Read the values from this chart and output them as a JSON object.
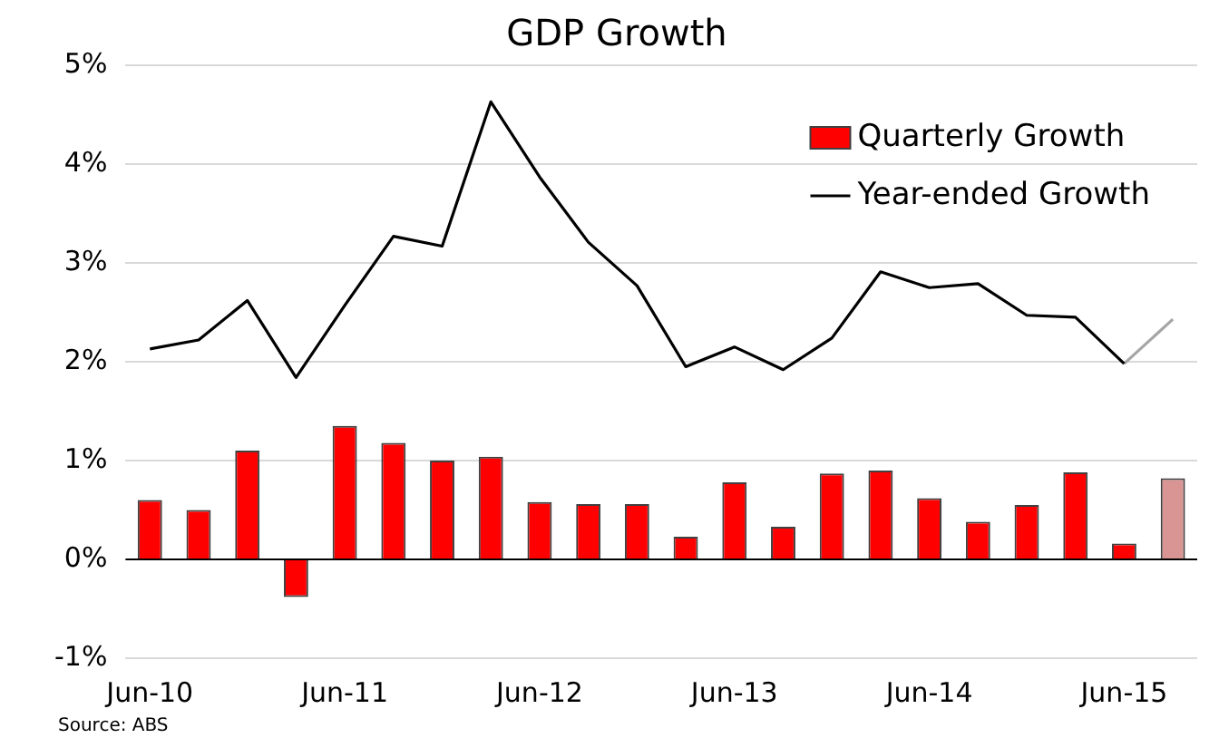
{
  "chart_data": {
    "type": "bar",
    "title": "GDP Growth",
    "categories": [
      "Jun-10",
      null,
      null,
      null,
      "Jun-11",
      null,
      null,
      null,
      "Jun-12",
      null,
      null,
      null,
      "Jun-13",
      null,
      null,
      null,
      "Jun-14",
      null,
      null,
      null,
      "Jun-15",
      null
    ],
    "series": [
      {
        "name": "Quarterly Growth",
        "color": "#ff0000",
        "colors": [
          "#ff0000",
          "#ff0000",
          "#ff0000",
          "#ff0000",
          "#ff0000",
          "#ff0000",
          "#ff0000",
          "#ff0000",
          "#ff0000",
          "#ff0000",
          "#ff0000",
          "#ff0000",
          "#ff0000",
          "#ff0000",
          "#ff0000",
          "#ff0000",
          "#ff0000",
          "#ff0000",
          "#ff0000",
          "#ff0000",
          "#ff0000",
          "#d99594"
        ],
        "values": [
          0.6,
          0.5,
          1.1,
          -0.38,
          1.35,
          1.18,
          1.0,
          1.04,
          0.58,
          0.56,
          0.56,
          0.23,
          0.78,
          0.33,
          0.87,
          0.9,
          0.62,
          0.38,
          0.55,
          0.88,
          0.16,
          0.82
        ]
      },
      {
        "name": "Year-ended Growth",
        "type": "line",
        "color": "#000000",
        "values": [
          2.13,
          2.22,
          2.62,
          1.84,
          2.57,
          3.27,
          3.17,
          4.63,
          3.87,
          3.21,
          2.77,
          1.95,
          2.15,
          1.92,
          2.24,
          2.91,
          2.75,
          2.79,
          2.47,
          2.45,
          1.98,
          null
        ]
      },
      {
        "type": "line",
        "color": "#a6a6a6",
        "values": [
          null,
          null,
          null,
          null,
          null,
          null,
          null,
          null,
          null,
          null,
          null,
          null,
          null,
          null,
          null,
          null,
          null,
          null,
          null,
          null,
          1.98,
          2.43
        ]
      }
    ],
    "ylim": [
      -1,
      5
    ],
    "yticks": [
      {
        "value": -1,
        "label": "-1%"
      },
      {
        "value": 0,
        "label": "0%"
      },
      {
        "value": 1,
        "label": "1%"
      },
      {
        "value": 2,
        "label": "2%"
      },
      {
        "value": 3,
        "label": "3%"
      },
      {
        "value": 4,
        "label": "4%"
      },
      {
        "value": 5,
        "label": "5%"
      }
    ],
    "grid": "y",
    "legend": "top right",
    "marker": "none",
    "line_style": "solid",
    "annotations": [
      "Source: ABS"
    ]
  }
}
